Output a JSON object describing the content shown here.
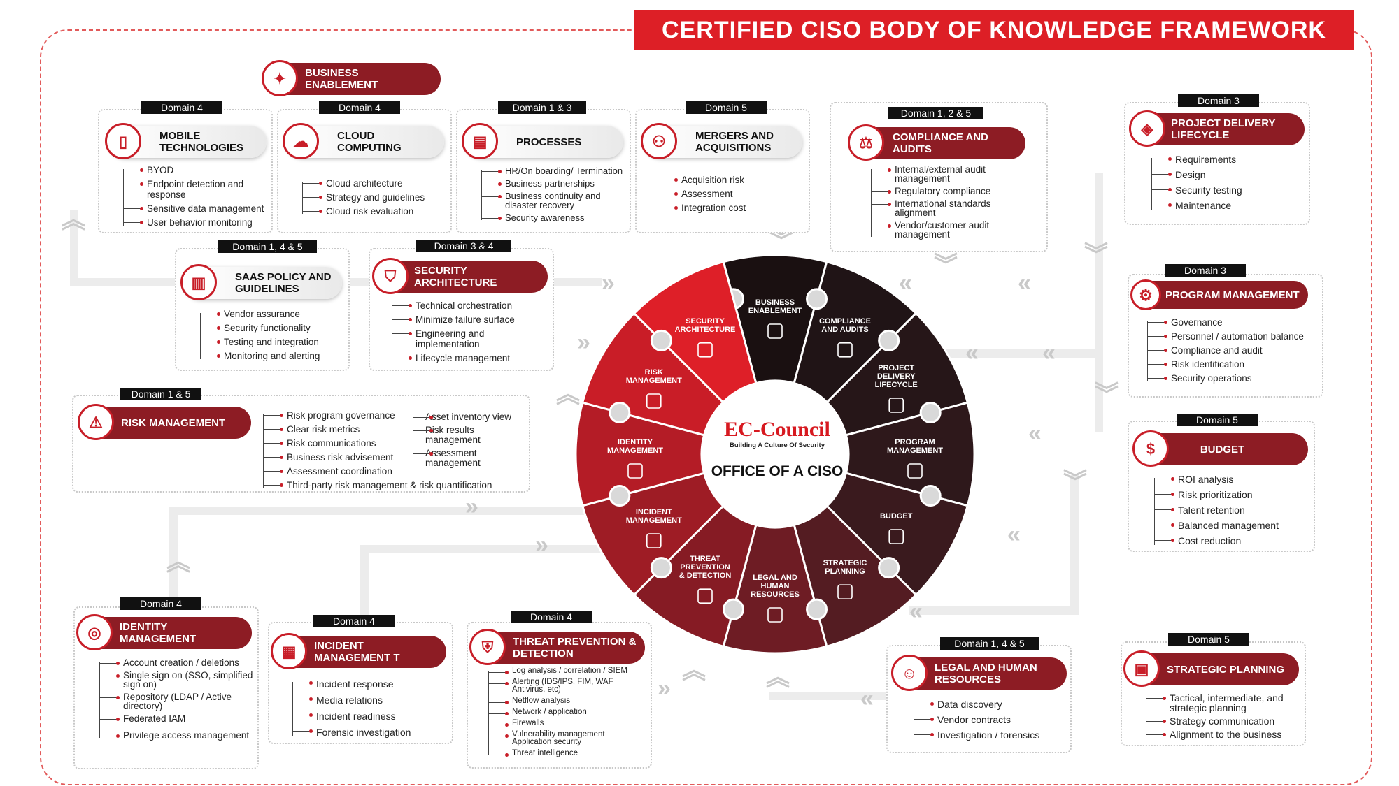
{
  "title": "CERTIFIED CISO BODY OF KNOWLEDGE FRAMEWORK",
  "business_enablement_top": "BUSINESS ENABLEMENT",
  "center": {
    "logo": "EC-Council",
    "tagline": "Building A Culture Of Security",
    "label": "OFFICE OF A CISO"
  },
  "wheel_segments": [
    {
      "label": "BUSINESS ENABLEMENT",
      "color": "#1a1011"
    },
    {
      "label": "COMPLIANCE AND AUDITS",
      "color": "#201416"
    },
    {
      "label": "PROJECT DELIVERY LIFECYCLE",
      "color": "#261618"
    },
    {
      "label": "PROGRAM MANAGEMENT",
      "color": "#2e181b"
    },
    {
      "label": "BUDGET",
      "color": "#3a1a1e"
    },
    {
      "label": "STRATEGIC PLANNING",
      "color": "#541c22"
    },
    {
      "label": "LEGAL AND HUMAN RESOURCES",
      "color": "#6e1c24"
    },
    {
      "label": "THREAT PREVENTION & DETECTION",
      "color": "#861b24"
    },
    {
      "label": "INCIDENT MANAGEMENT",
      "color": "#9e1c25"
    },
    {
      "label": "IDENTITY MANAGEMENT",
      "color": "#b41c26"
    },
    {
      "label": "RISK MANAGEMENT",
      "color": "#c91d27"
    },
    {
      "label": "SECURITY ARCHITECTURE",
      "color": "#de1f28"
    }
  ],
  "colors": {
    "accent": "#dd1f26",
    "dark_red": "#8d1c24"
  },
  "mobile": {
    "domain": "Domain 4",
    "title": "MOBILE TECHNOLOGIES",
    "items": [
      "BYOD",
      "Endpoint detection and response",
      "Sensitive data management",
      "User behavior monitoring"
    ]
  },
  "cloud": {
    "domain": "Domain 4",
    "title": "CLOUD COMPUTING",
    "items": [
      "Cloud architecture",
      "Strategy and guidelines",
      "Cloud risk evaluation"
    ]
  },
  "processes": {
    "domain": "Domain 1 & 3",
    "title": "PROCESSES",
    "items": [
      "HR/On boarding/ Termination",
      "Business partnerships",
      "Business continuity and disaster recovery",
      "Security awareness"
    ]
  },
  "mergers": {
    "domain": "Domain 5",
    "title": "MERGERS AND ACQUISITIONS",
    "items": [
      "Acquisition risk",
      "Assessment",
      "Integration cost"
    ]
  },
  "compliance": {
    "domain": "Domain 1, 2 & 5",
    "title": "COMPLIANCE AND AUDITS",
    "items": [
      "Internal/external audit management",
      "Regulatory compliance",
      "International standards alignment",
      "Vendor/customer audit management"
    ]
  },
  "project": {
    "domain": "Domain 3",
    "title": "PROJECT DELIVERY LIFECYCLE",
    "items": [
      "Requirements",
      "Design",
      "Security testing",
      "Maintenance"
    ]
  },
  "saas": {
    "domain": "Domain 1, 4 & 5",
    "title": "SAAS POLICY AND GUIDELINES",
    "items": [
      "Vendor assurance",
      "Security functionality",
      "Testing and integration",
      "Monitoring and alerting"
    ]
  },
  "secarch": {
    "domain": "Domain 3 & 4",
    "title": "SECURITY ARCHITECTURE",
    "items": [
      "Technical orchestration",
      "Minimize failure surface",
      "Engineering and implementation",
      "Lifecycle management"
    ]
  },
  "program": {
    "domain": "Domain 3",
    "title": "PROGRAM MANAGEMENT",
    "items": [
      "Governance",
      "Personnel / automation balance",
      "Compliance and audit",
      "Risk identification",
      "Security operations"
    ]
  },
  "risk": {
    "domain": "Domain 1 & 5",
    "title": "RISK MANAGEMENT",
    "items": [
      "Risk program governance",
      "Clear risk metrics",
      "Risk communications",
      "Business risk advisement",
      "Assessment coordination",
      "Third-party risk management & risk quantification"
    ],
    "items2": [
      "Asset inventory view",
      "Risk results management",
      "Assessment management"
    ]
  },
  "budget": {
    "domain": "Domain 5",
    "title": "BUDGET",
    "items": [
      "ROI analysis",
      "Risk prioritization",
      "Talent retention",
      "Balanced management",
      "Cost reduction"
    ]
  },
  "identity": {
    "domain": "Domain 4",
    "title": "IDENTITY MANAGEMENT",
    "items": [
      "Account creation / deletions",
      "Single sign on (SSO, simplified sign on)",
      "Repository (LDAP / Active directory)",
      "Federated IAM",
      "Privilege access management"
    ]
  },
  "incident": {
    "domain": "Domain 4",
    "title": "INCIDENT MANAGEMENT T",
    "items": [
      "Incident response",
      "Media relations",
      "Incident readiness",
      "Forensic investigation"
    ]
  },
  "threat": {
    "domain": "Domain 4",
    "title": "THREAT PREVENTION & DETECTION",
    "items": [
      "Log analysis / correlation / SIEM",
      "Alerting (IDS/IPS, FIM, WAF Antivirus, etc)",
      "Netflow analysis",
      "Network / application",
      "Firewalls",
      "Vulnerability management Application security",
      "Threat intelligence"
    ]
  },
  "legal": {
    "domain": "Domain 1, 4 & 5",
    "title": "LEGAL AND HUMAN RESOURCES",
    "items": [
      "Data discovery",
      "Vendor contracts",
      "Investigation / forensics"
    ]
  },
  "strategic": {
    "domain": "Domain 5",
    "title": "STRATEGIC PLANNING",
    "items": [
      "Tactical, intermediate, and strategic planning",
      "Strategy communication",
      "Alignment to the business"
    ]
  }
}
